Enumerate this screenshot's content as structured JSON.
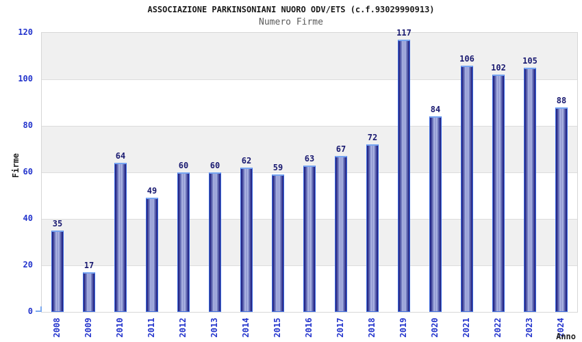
{
  "chart_data": {
    "type": "bar",
    "title": "ASSOCIAZIONE PARKINSONIANI NUORO ODV/ETS (c.f.93029990913)",
    "subtitle": "Numero Firme",
    "xlabel": "Anno",
    "ylabel": "Firme",
    "categories": [
      "2008",
      "2009",
      "2010",
      "2011",
      "2012",
      "2013",
      "2014",
      "2015",
      "2016",
      "2017",
      "2018",
      "2019",
      "2020",
      "2021",
      "2022",
      "2023",
      "2024"
    ],
    "values": [
      35,
      17,
      64,
      49,
      60,
      60,
      62,
      59,
      63,
      67,
      72,
      117,
      84,
      106,
      102,
      105,
      88
    ],
    "ylim": [
      0,
      120
    ],
    "yticks": [
      0,
      20,
      40,
      60,
      80,
      100,
      120
    ],
    "grid": "horizontal alternating bands",
    "legend_position": "none",
    "colors": {
      "bar_edge": "#3f6ee2",
      "bar_cap": "#77a5f2",
      "bar_dark": "#1f1f78",
      "bar_light": "#b4bce8",
      "axis_tick_text": "#2233cc",
      "value_label_text": "#191970",
      "band_fill": "#f0f0f0",
      "gridline": "#dcdcdc",
      "title_text": "#1a1a1a",
      "subtitle_text": "#5a5a5a",
      "axis_title_text": "#222222"
    }
  }
}
